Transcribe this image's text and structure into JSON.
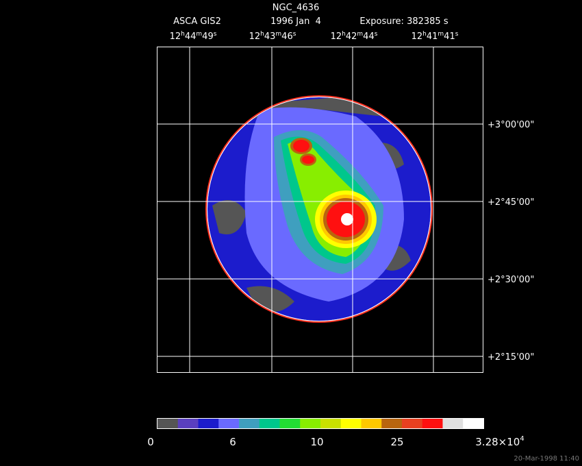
{
  "header": {
    "title": "NGC_4636",
    "instrument": "ASCA GIS2",
    "date": "1996 Jan  4",
    "exposure": "Exposure: 382385 s"
  },
  "ra_labels": [
    [
      "12",
      "h",
      "44",
      "m",
      "49",
      "s"
    ],
    [
      "12",
      "h",
      "43",
      "m",
      "46",
      "s"
    ],
    [
      "12",
      "h",
      "42",
      "m",
      "44",
      "s"
    ],
    [
      "12",
      "h",
      "41",
      "m",
      "41",
      "s"
    ]
  ],
  "dec_labels": [
    "+3°00'00\"",
    "+2°45'00\"",
    "+2°30'00\"",
    "+2°15'00\""
  ],
  "colorbar": {
    "colors": [
      "#555555",
      "#5a3fbf",
      "#1c1ccc",
      "#6a6aff",
      "#3f9fbf",
      "#00c78c",
      "#22dd33",
      "#88ee00",
      "#c8e000",
      "#ffff00",
      "#ffc800",
      "#b8650f",
      "#e84020",
      "#ff1010",
      "#e0e0e0",
      "#ffffff"
    ],
    "labels": [
      [
        "0"
      ],
      [
        "6"
      ],
      [
        "10"
      ],
      [
        "25"
      ],
      [
        "3.28×10",
        "4"
      ]
    ]
  },
  "timestamp": "20-Mar-1998 11:40"
}
